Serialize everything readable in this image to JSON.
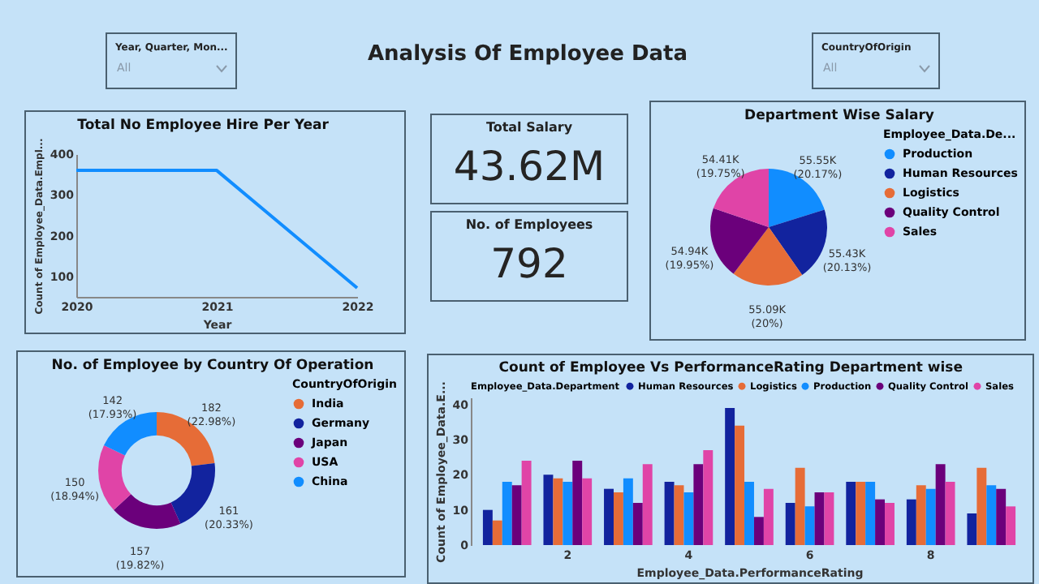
{
  "chart_data": [
    {
      "type": "other",
      "title": "Year, Quarter, Mon...",
      "annotations": [
        "All"
      ]
    },
    {
      "type": "other",
      "title": "Analysis Of Employee Data"
    },
    {
      "type": "other",
      "title": "CountryOfOrigin",
      "annotations": [
        "All"
      ]
    },
    {
      "type": "line",
      "title": "Total No Employee Hire Per Year",
      "xlabel": "Year",
      "ylabel": "Count of Employee_Data.Empl...",
      "x": [
        2020,
        2021,
        2022
      ],
      "series": [
        {
          "color": "#118dff",
          "values": [
            360,
            360,
            72
          ]
        }
      ],
      "xlim": [
        2020,
        2022
      ],
      "xticks": [
        2020,
        2021,
        2022
      ],
      "ylim": [
        50,
        400
      ],
      "yticks": [
        100,
        200,
        300,
        400
      ]
    },
    {
      "type": "other",
      "title": "Total Salary",
      "annotations": [
        "43.62M"
      ]
    },
    {
      "type": "other",
      "title": "No. of Employees",
      "annotations": [
        "792"
      ]
    },
    {
      "type": "pie",
      "title": "Department Wise Salary",
      "legend_title": "Employee_Data.De...",
      "legend": "right",
      "categories": [
        "Production",
        "Human Resources",
        "Logistics",
        "Quality Control",
        "Sales"
      ],
      "values": [
        20.17,
        20.13,
        20,
        19.95,
        19.75
      ],
      "value_labels": [
        "55.55K (20.17%)",
        "55.43K (20.13%)",
        "55.09K (20%)",
        "54.94K (19.95%)",
        "54.41K (19.75%)"
      ],
      "colors": [
        "#118dff",
        "#12239e",
        "#e66c37",
        "#6b007b",
        "#e044a7"
      ]
    },
    {
      "type": "donut",
      "title": "No. of Employee by Country Of Operation",
      "legend_title": "CountryOfOrigin",
      "legend": "right",
      "categories": [
        "India",
        "Germany",
        "Japan",
        "USA",
        "China"
      ],
      "values": [
        22.98,
        20.33,
        19.82,
        18.94,
        17.93
      ],
      "value_labels": [
        "182 (22.98%)",
        "161 (20.33%)",
        "157 (19.82%)",
        "150 (18.94%)",
        "142 (17.93%)"
      ],
      "colors": [
        "#e66c37",
        "#12239e",
        "#6b007b",
        "#e044a7",
        "#118dff"
      ]
    },
    {
      "type": "bar",
      "title": "Count of Employee Vs PerformanceRating Department wise",
      "xlabel": "Employee_Data.PerformanceRating",
      "ylabel": "Count of Employee_Data.E...",
      "legend_title": "Employee_Data.Department",
      "legend": "top",
      "categories": [
        null,
        "2",
        null,
        "4",
        null,
        "6",
        null,
        "8",
        null
      ],
      "ylim": [
        0,
        42
      ],
      "yticks": [
        0,
        10,
        20,
        30,
        40
      ],
      "series": [
        {
          "name": "Human Resources",
          "color": "#12239e",
          "values": [
            10,
            20,
            16,
            18,
            39,
            12,
            18,
            13,
            9
          ]
        },
        {
          "name": "Logistics",
          "color": "#e66c37",
          "values": [
            7,
            19,
            15,
            17,
            34,
            22,
            18,
            17,
            22
          ]
        },
        {
          "name": "Production",
          "color": "#118dff",
          "values": [
            18,
            18,
            19,
            15,
            18,
            11,
            18,
            16,
            17
          ]
        },
        {
          "name": "Quality Control",
          "color": "#6b007b",
          "values": [
            17,
            24,
            12,
            23,
            8,
            15,
            13,
            23,
            16
          ]
        },
        {
          "name": "Sales",
          "color": "#e044a7",
          "values": [
            24,
            19,
            23,
            27,
            16,
            15,
            12,
            18,
            11
          ]
        }
      ]
    }
  ]
}
